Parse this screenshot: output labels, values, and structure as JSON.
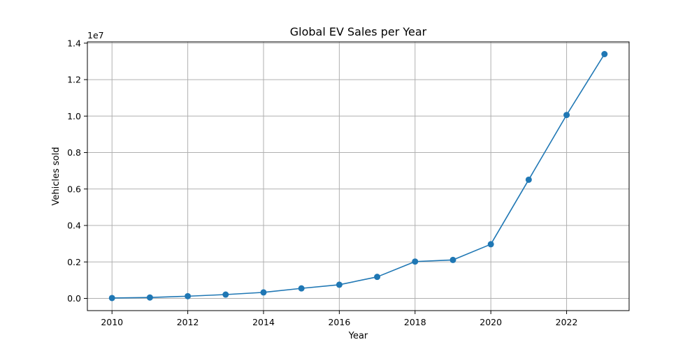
{
  "chart_data": {
    "type": "line",
    "title": "Global EV Sales per Year",
    "xlabel": "Year",
    "ylabel": "Vehicles sold",
    "y_offset_label": "1e7",
    "xlim": [
      2009.35,
      2023.65
    ],
    "ylim": [
      -0.067,
      1.407
    ],
    "y_unit_multiplier": 10000000,
    "grid": true,
    "line_color": "#1f77b4",
    "marker": "circle",
    "x_ticks": [
      2010,
      2012,
      2014,
      2016,
      2018,
      2020,
      2022
    ],
    "x_tick_labels": [
      "2010",
      "2012",
      "2014",
      "2016",
      "2018",
      "2020",
      "2022"
    ],
    "y_ticks": [
      0.0,
      0.2,
      0.4,
      0.6,
      0.8,
      1.0,
      1.2,
      1.4
    ],
    "y_tick_labels": [
      "0.0",
      "0.2",
      "0.4",
      "0.6",
      "0.8",
      "1.0",
      "1.2",
      "1.4"
    ],
    "x": [
      2010,
      2011,
      2012,
      2013,
      2014,
      2015,
      2016,
      2017,
      2018,
      2019,
      2020,
      2021,
      2022,
      2023
    ],
    "values": [
      0.002,
      0.005,
      0.012,
      0.021,
      0.033,
      0.055,
      0.075,
      0.118,
      0.202,
      0.211,
      0.297,
      0.651,
      1.006,
      1.34
    ]
  }
}
